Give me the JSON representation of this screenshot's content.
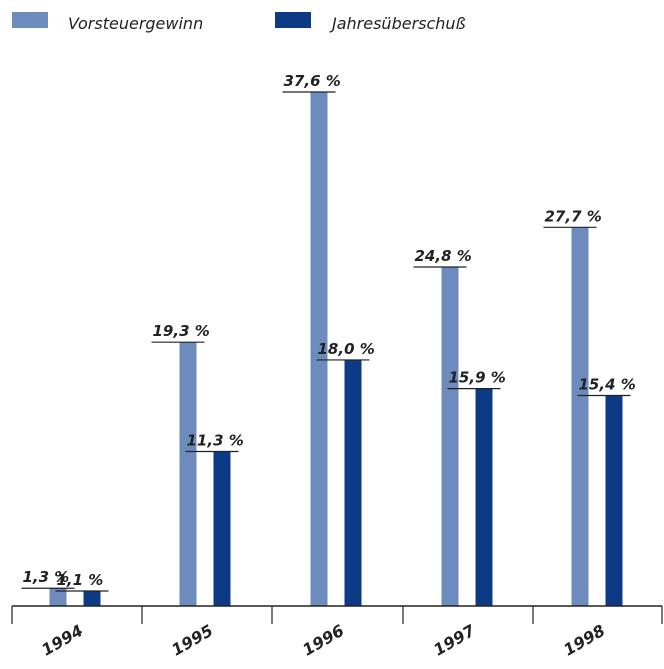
{
  "colors": {
    "vorsteuergewinn": "#6d8bbd",
    "jahresueberschuss": "#0c3a84",
    "axis": "#222222"
  },
  "chart_data": {
    "type": "bar",
    "categories": [
      "1994",
      "1995",
      "1996",
      "1997",
      "1998"
    ],
    "series": [
      {
        "name": "Vorsteuergewinn",
        "values": [
          1.3,
          19.3,
          37.6,
          24.8,
          27.7
        ],
        "labels": [
          "1,3 %",
          "19,3 %",
          "37,6 %",
          "24,8 %",
          "27,7 %"
        ]
      },
      {
        "name": "Jahresüberschuß",
        "values": [
          1.1,
          11.3,
          18.0,
          15.9,
          15.4
        ],
        "labels": [
          "1,1 %",
          "11,3 %",
          "18,0 %",
          "15,9 %",
          "15,4 %"
        ]
      }
    ],
    "ylim": [
      0,
      38.5
    ],
    "legend": "top-left",
    "grid": false
  }
}
